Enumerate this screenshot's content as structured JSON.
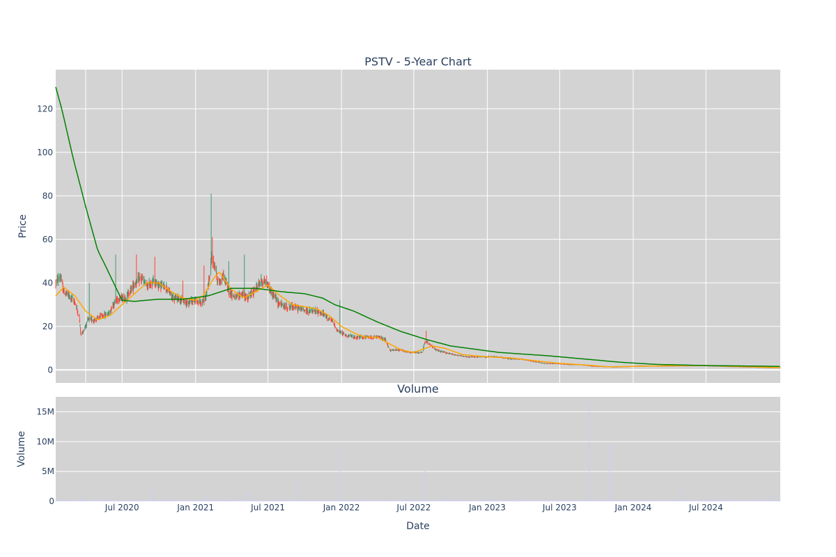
{
  "chart_data": [
    {
      "type": "candlestick",
      "title": "PSTV - 5-Year Chart",
      "ylabel": "Price",
      "ylim": [
        -6,
        138
      ],
      "y_ticks": [
        0,
        20,
        40,
        60,
        80,
        100,
        120
      ],
      "x_range": [
        "2020-01-17",
        "2025-01-03"
      ],
      "plot_bg": "#d3d3d3",
      "grid": true,
      "colors": {
        "increasing": "#3d9970",
        "decreasing": "#ff4136",
        "ma_short": "#ffa500",
        "ma_long": "#008000"
      },
      "price_anchors": [
        [
          "2020-01-17",
          40
        ],
        [
          "2020-01-28",
          43
        ],
        [
          "2020-02-06",
          36
        ],
        [
          "2020-02-25",
          33
        ],
        [
          "2020-03-05",
          31
        ],
        [
          "2020-03-16",
          24
        ],
        [
          "2020-03-20",
          16
        ],
        [
          "2020-03-26",
          18
        ],
        [
          "2020-04-07",
          23
        ],
        [
          "2020-04-24",
          23
        ],
        [
          "2020-05-15",
          25
        ],
        [
          "2020-05-29",
          26
        ],
        [
          "2020-06-08",
          30
        ],
        [
          "2020-06-22",
          33
        ],
        [
          "2020-07-10",
          33
        ],
        [
          "2020-07-27",
          38
        ],
        [
          "2020-08-07",
          41
        ],
        [
          "2020-08-20",
          42
        ],
        [
          "2020-09-02",
          38
        ],
        [
          "2020-09-18",
          41
        ],
        [
          "2020-10-01",
          39
        ],
        [
          "2020-10-20",
          38
        ],
        [
          "2020-11-04",
          33
        ],
        [
          "2020-11-20",
          33
        ],
        [
          "2020-12-07",
          31
        ],
        [
          "2020-12-24",
          32
        ],
        [
          "2021-01-13",
          31
        ],
        [
          "2021-01-27",
          33
        ],
        [
          "2021-02-05",
          43
        ],
        [
          "2021-02-10",
          52
        ],
        [
          "2021-02-18",
          48
        ],
        [
          "2021-02-26",
          40
        ],
        [
          "2021-03-12",
          43
        ],
        [
          "2021-03-26",
          36
        ],
        [
          "2021-04-12",
          33
        ],
        [
          "2021-04-26",
          35
        ],
        [
          "2021-05-10",
          33
        ],
        [
          "2021-05-26",
          36
        ],
        [
          "2021-06-14",
          41
        ],
        [
          "2021-06-28",
          40
        ],
        [
          "2021-07-09",
          36
        ],
        [
          "2021-07-26",
          31
        ],
        [
          "2021-08-12",
          29
        ],
        [
          "2021-09-02",
          29
        ],
        [
          "2021-09-22",
          28
        ],
        [
          "2021-10-12",
          27
        ],
        [
          "2021-11-01",
          27
        ],
        [
          "2021-11-22",
          25
        ],
        [
          "2021-12-10",
          22
        ],
        [
          "2021-12-22",
          18
        ],
        [
          "2022-01-12",
          16
        ],
        [
          "2022-02-02",
          15
        ],
        [
          "2022-02-23",
          15
        ],
        [
          "2022-03-16",
          15
        ],
        [
          "2022-04-06",
          15
        ],
        [
          "2022-04-20",
          14
        ],
        [
          "2022-05-02",
          9
        ],
        [
          "2022-05-17",
          9
        ],
        [
          "2022-06-01",
          9
        ],
        [
          "2022-06-20",
          8
        ],
        [
          "2022-07-11",
          8
        ],
        [
          "2022-07-22",
          8
        ],
        [
          "2022-07-29",
          13
        ],
        [
          "2022-08-10",
          12
        ],
        [
          "2022-08-26",
          9
        ],
        [
          "2022-09-16",
          8
        ],
        [
          "2022-10-12",
          7
        ],
        [
          "2022-11-07",
          6
        ],
        [
          "2022-12-06",
          6
        ],
        [
          "2023-01-04",
          6
        ],
        [
          "2023-01-30",
          6
        ],
        [
          "2023-02-27",
          5
        ],
        [
          "2023-03-27",
          5
        ],
        [
          "2023-04-25",
          4
        ],
        [
          "2023-05-25",
          3
        ],
        [
          "2023-06-23",
          3
        ],
        [
          "2023-07-24",
          2.5
        ],
        [
          "2023-08-22",
          2.5
        ],
        [
          "2023-09-20",
          1.8
        ],
        [
          "2023-10-19",
          1.6
        ],
        [
          "2023-11-17",
          1.4
        ],
        [
          "2023-12-18",
          1.6
        ],
        [
          "2024-01-17",
          1.9
        ],
        [
          "2024-02-15",
          1.9
        ],
        [
          "2024-03-15",
          1.8
        ],
        [
          "2024-04-15",
          1.9
        ],
        [
          "2024-05-14",
          1.9
        ],
        [
          "2024-06-12",
          2.2
        ],
        [
          "2024-07-11",
          1.9
        ],
        [
          "2024-08-09",
          1.7
        ],
        [
          "2024-09-09",
          1.6
        ],
        [
          "2024-10-08",
          1.4
        ],
        [
          "2024-11-06",
          1.3
        ],
        [
          "2024-12-05",
          1.1
        ],
        [
          "2025-01-03",
          1.1
        ]
      ],
      "spikes": [
        {
          "date": "2020-04-10",
          "high": 40
        },
        {
          "date": "2020-06-15",
          "high": 53
        },
        {
          "date": "2020-08-06",
          "high": 53
        },
        {
          "date": "2020-09-21",
          "high": 52
        },
        {
          "date": "2020-11-30",
          "high": 41
        },
        {
          "date": "2021-01-22",
          "high": 48
        },
        {
          "date": "2021-02-09",
          "high": 81
        },
        {
          "date": "2021-02-12",
          "high": 61
        },
        {
          "date": "2021-03-25",
          "high": 50
        },
        {
          "date": "2021-05-03",
          "high": 53
        },
        {
          "date": "2021-12-28",
          "high": 32
        },
        {
          "date": "2022-08-01",
          "high": 18
        }
      ],
      "ma_short_anchors": [
        [
          "2020-01-17",
          34
        ],
        [
          "2020-02-06",
          38
        ],
        [
          "2020-03-05",
          34
        ],
        [
          "2020-04-01",
          27
        ],
        [
          "2020-05-01",
          23
        ],
        [
          "2020-06-01",
          25
        ],
        [
          "2020-07-01",
          30
        ],
        [
          "2020-08-01",
          35
        ],
        [
          "2020-09-01",
          40
        ],
        [
          "2020-10-01",
          40
        ],
        [
          "2020-11-01",
          36
        ],
        [
          "2020-12-01",
          33
        ],
        [
          "2021-01-01",
          32
        ],
        [
          "2021-01-20",
          34
        ],
        [
          "2021-02-15",
          42
        ],
        [
          "2021-03-01",
          45
        ],
        [
          "2021-04-01",
          37
        ],
        [
          "2021-05-01",
          33
        ],
        [
          "2021-06-01",
          36
        ],
        [
          "2021-07-01",
          39
        ],
        [
          "2021-08-01",
          34
        ],
        [
          "2021-09-01",
          30
        ],
        [
          "2021-10-01",
          29
        ],
        [
          "2021-11-01",
          28
        ],
        [
          "2021-12-01",
          25
        ],
        [
          "2022-01-01",
          20
        ],
        [
          "2022-02-01",
          17
        ],
        [
          "2022-03-01",
          15
        ],
        [
          "2022-04-01",
          15
        ],
        [
          "2022-05-01",
          12
        ],
        [
          "2022-06-01",
          9
        ],
        [
          "2022-07-01",
          8
        ],
        [
          "2022-08-15",
          11
        ],
        [
          "2022-09-15",
          10
        ],
        [
          "2022-11-01",
          7
        ],
        [
          "2023-01-01",
          6
        ],
        [
          "2023-03-01",
          5.5
        ],
        [
          "2023-05-01",
          4.2
        ],
        [
          "2023-07-01",
          3
        ],
        [
          "2023-09-01",
          2.3
        ],
        [
          "2023-11-01",
          1.4
        ],
        [
          "2024-01-01",
          1.6
        ],
        [
          "2024-04-01",
          1.9
        ],
        [
          "2024-07-01",
          2.0
        ],
        [
          "2024-10-01",
          1.5
        ],
        [
          "2025-01-03",
          1.0
        ]
      ],
      "ma_long_anchors": [
        [
          "2020-01-17",
          130
        ],
        [
          "2020-02-01",
          120
        ],
        [
          "2020-03-01",
          97
        ],
        [
          "2020-04-01",
          75
        ],
        [
          "2020-05-01",
          55
        ],
        [
          "2020-05-20",
          48
        ],
        [
          "2020-06-15",
          38
        ],
        [
          "2020-07-01",
          32
        ],
        [
          "2020-08-01",
          31.5
        ],
        [
          "2020-10-01",
          32.5
        ],
        [
          "2020-12-01",
          32.5
        ],
        [
          "2021-02-01",
          34
        ],
        [
          "2021-04-01",
          37.5
        ],
        [
          "2021-06-01",
          37.5
        ],
        [
          "2021-08-01",
          36
        ],
        [
          "2021-10-01",
          35
        ],
        [
          "2021-11-15",
          33
        ],
        [
          "2021-12-15",
          30
        ],
        [
          "2022-02-01",
          27
        ],
        [
          "2022-04-01",
          22
        ],
        [
          "2022-06-01",
          17.5
        ],
        [
          "2022-08-01",
          14
        ],
        [
          "2022-10-01",
          11
        ],
        [
          "2022-12-01",
          9.5
        ],
        [
          "2023-02-01",
          8
        ],
        [
          "2023-06-01",
          6.5
        ],
        [
          "2023-09-01",
          5
        ],
        [
          "2023-12-01",
          3.5
        ],
        [
          "2024-03-01",
          2.5
        ],
        [
          "2024-07-01",
          2
        ],
        [
          "2025-01-03",
          1.6
        ]
      ]
    },
    {
      "type": "bar",
      "title": "Volume",
      "ylabel": "Volume",
      "xlabel": "Date",
      "ylim": [
        0,
        17500000
      ],
      "y_ticks": [
        0,
        5000000,
        10000000,
        15000000
      ],
      "y_tick_labels": [
        "0",
        "5M",
        "10M",
        "15M"
      ],
      "x_ticks": [
        "2020-07-01",
        "2021-01-01",
        "2021-07-01",
        "2022-01-01",
        "2022-07-01",
        "2023-01-01",
        "2023-07-01",
        "2024-01-01",
        "2024-07-01"
      ],
      "x_tick_labels": [
        "Jul 2020",
        "Jan 2021",
        "Jul 2021",
        "Jan 2022",
        "Jul 2022",
        "Jan 2023",
        "Jul 2023",
        "Jan 2024",
        "Jul 2024"
      ],
      "bar_color": "#ccccff",
      "plot_bg": "#d3d3d3",
      "grid": true,
      "baseline_volume": 120000,
      "volume_spikes": [
        {
          "date": "2020-03-20",
          "value": 700000
        },
        {
          "date": "2020-09-18",
          "value": 2000000
        },
        {
          "date": "2021-01-28",
          "value": 900000
        },
        {
          "date": "2021-02-09",
          "value": 500000
        },
        {
          "date": "2021-04-22",
          "value": 800000
        },
        {
          "date": "2021-05-11",
          "value": 1700000
        },
        {
          "date": "2021-09-14",
          "value": 3500000
        },
        {
          "date": "2021-12-28",
          "value": 9000000
        },
        {
          "date": "2022-07-28",
          "value": 5200000
        },
        {
          "date": "2022-09-12",
          "value": 800000
        },
        {
          "date": "2023-09-13",
          "value": 16800000
        },
        {
          "date": "2023-11-03",
          "value": 9500000
        },
        {
          "date": "2024-05-02",
          "value": 2100000
        },
        {
          "date": "2024-12-09",
          "value": 1200000
        }
      ]
    }
  ]
}
